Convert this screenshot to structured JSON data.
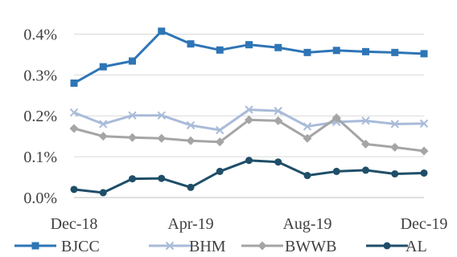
{
  "chart_data": {
    "type": "line",
    "x": [
      "Dec-18",
      "Jan-19",
      "Feb-19",
      "Mar-19",
      "Apr-19",
      "May-19",
      "Jun-19",
      "Jul-19",
      "Aug-19",
      "Sep-19",
      "Oct-19",
      "Nov-19",
      "Dec-19"
    ],
    "x_tick_labels": [
      "Dec-18",
      "Apr-19",
      "Aug-19",
      "Dec-19"
    ],
    "y_tick_labels": [
      "0.0%",
      "0.1%",
      "0.2%",
      "0.3%",
      "0.4%"
    ],
    "ylim": [
      0,
      0.45
    ],
    "y_unit": "%",
    "grid": "horizontal",
    "legend_position": "bottom",
    "series": [
      {
        "name": "BJCC",
        "color": "#2E75B6",
        "marker": "square",
        "values": [
          0.28,
          0.32,
          0.334,
          0.407,
          0.376,
          0.361,
          0.374,
          0.367,
          0.355,
          0.36,
          0.357,
          0.355,
          0.352
        ]
      },
      {
        "name": "BHM",
        "color": "#A9BBD9",
        "marker": "x",
        "values": [
          0.208,
          0.18,
          0.201,
          0.201,
          0.177,
          0.165,
          0.215,
          0.212,
          0.174,
          0.185,
          0.188,
          0.18,
          0.181
        ]
      },
      {
        "name": "BWWB",
        "color": "#A5A5A5",
        "marker": "diamond",
        "values": [
          0.169,
          0.15,
          0.147,
          0.145,
          0.139,
          0.136,
          0.19,
          0.188,
          0.145,
          0.195,
          0.131,
          0.123,
          0.114
        ]
      },
      {
        "name": "AL",
        "color": "#1F4E68",
        "marker": "circle",
        "values": [
          0.02,
          0.012,
          0.046,
          0.047,
          0.025,
          0.064,
          0.091,
          0.087,
          0.054,
          0.064,
          0.067,
          0.058,
          0.06
        ]
      }
    ]
  }
}
